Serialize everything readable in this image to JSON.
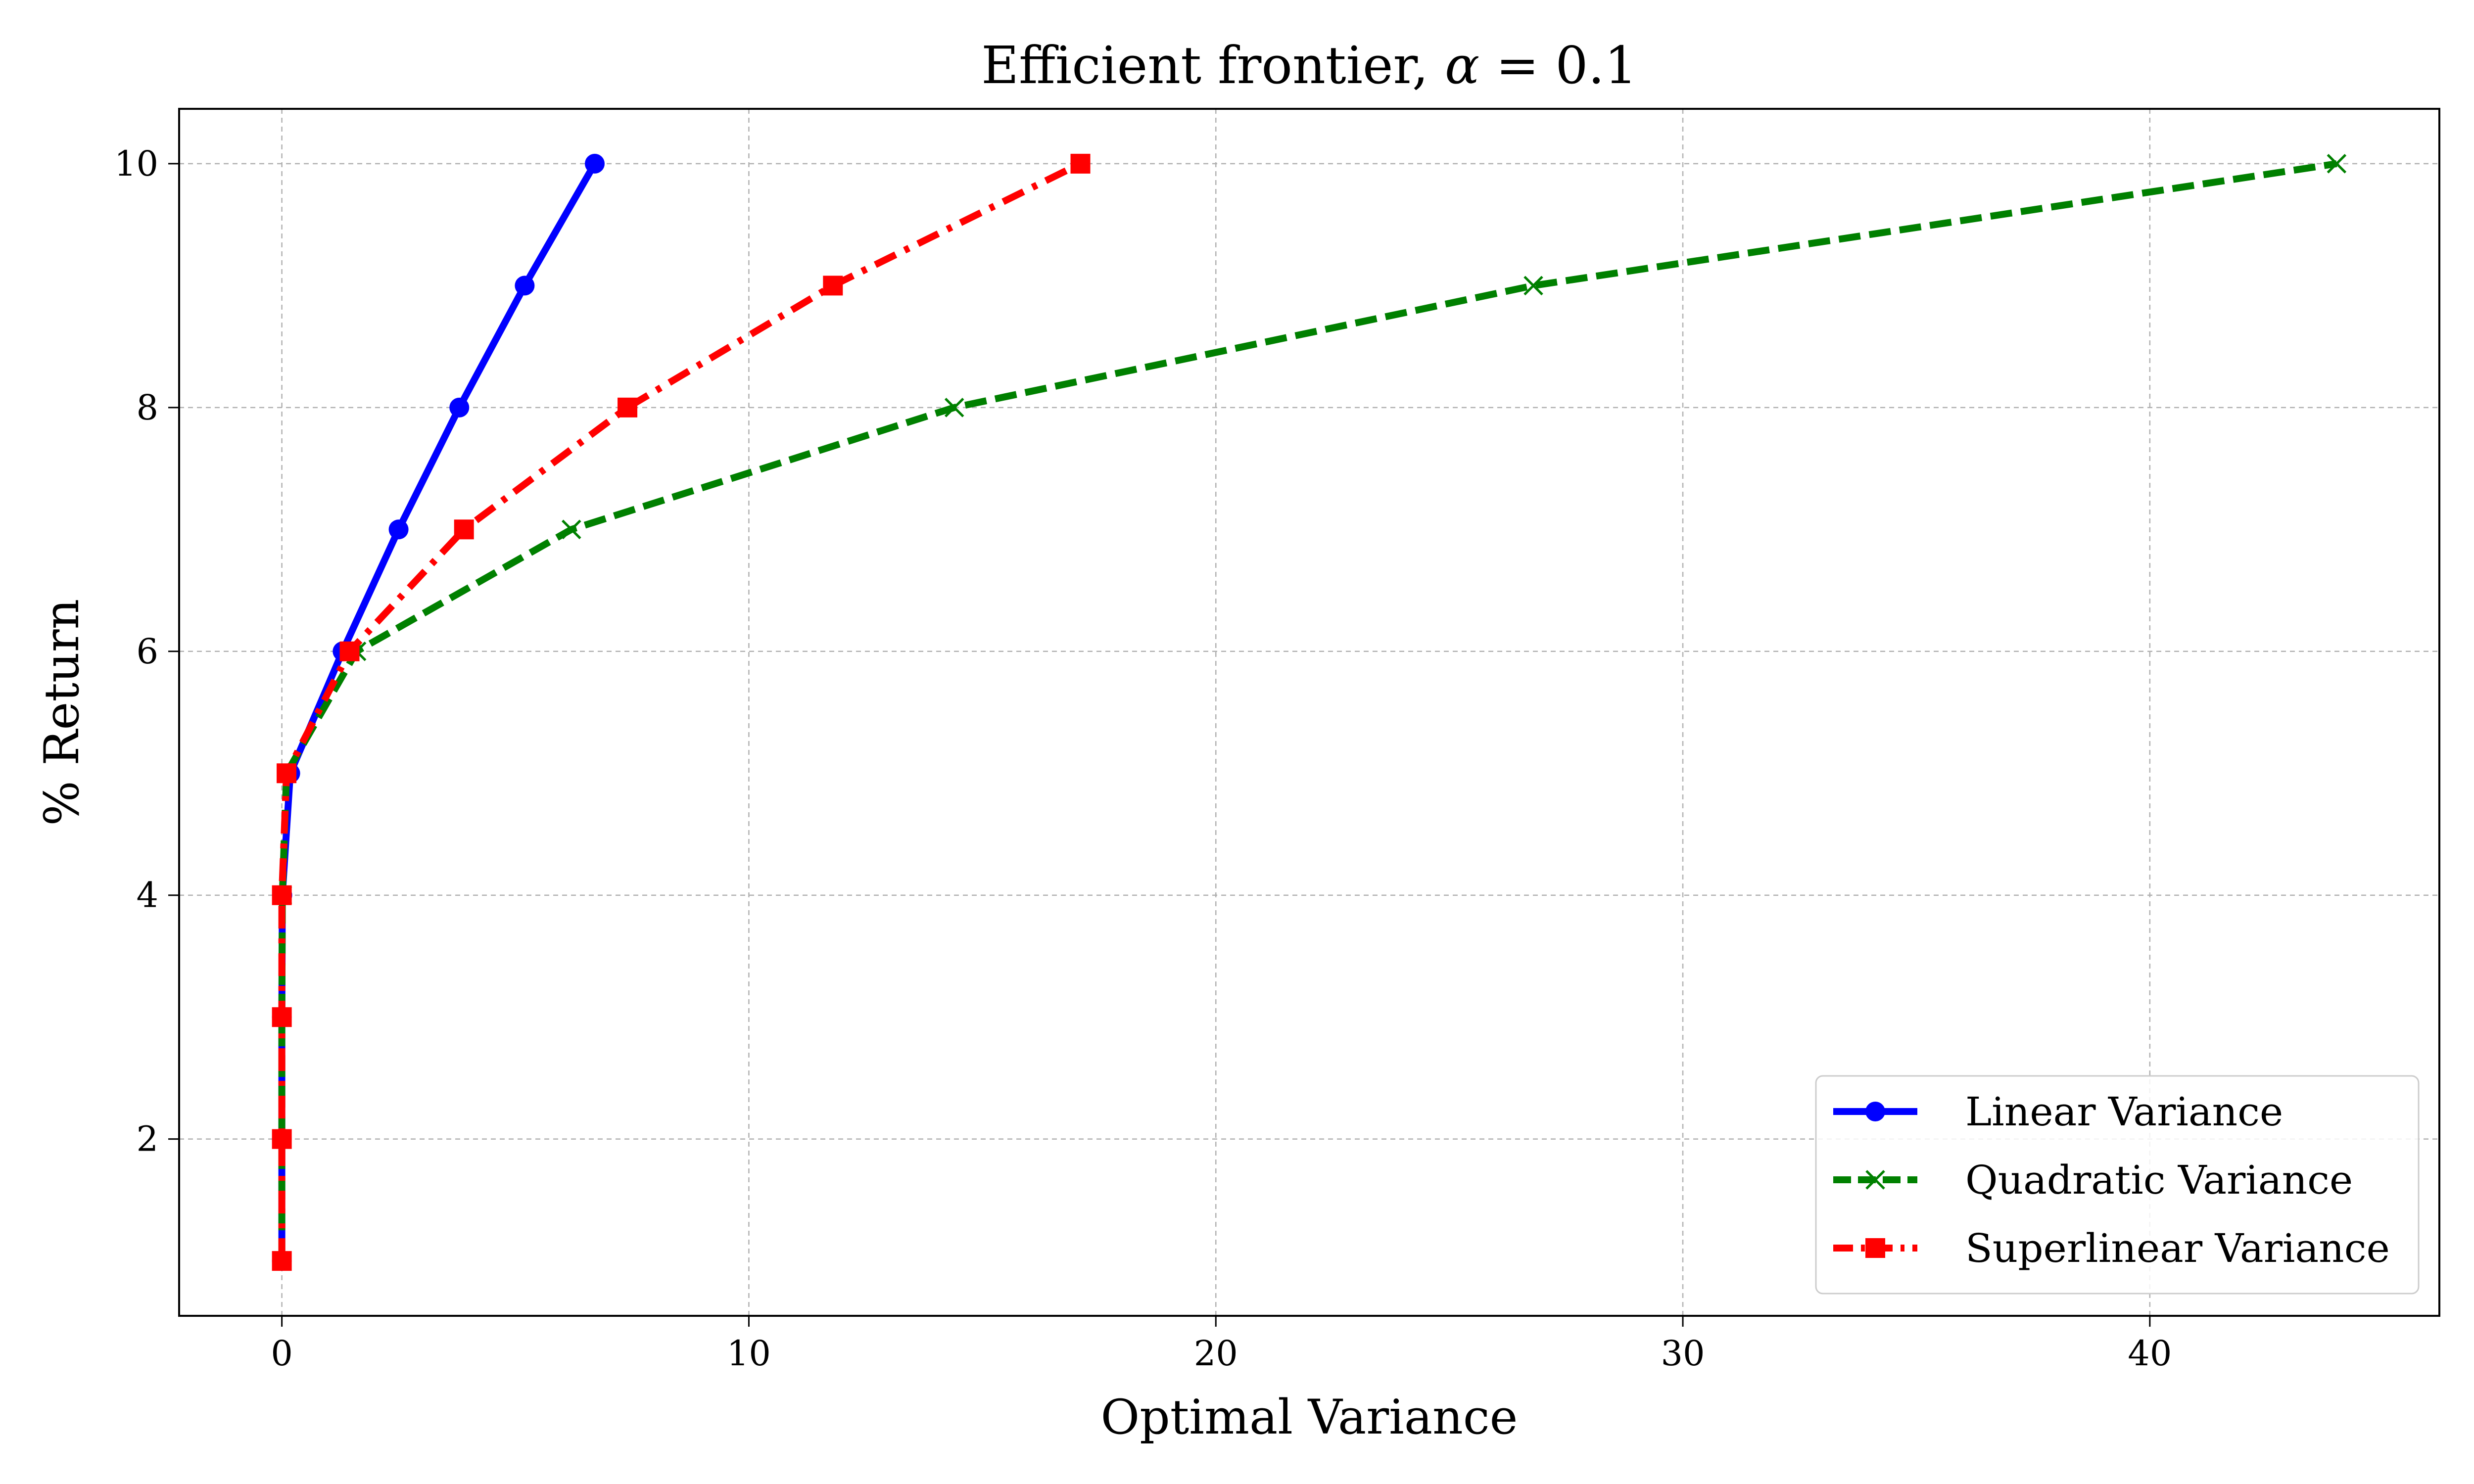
{
  "chart_data": {
    "type": "line",
    "title": "Efficient frontier, α = 0.1",
    "title_prefix": "Efficient frontier, ",
    "title_symbol": "α",
    "title_suffix": " = 0.1",
    "xlabel": "Optimal Variance",
    "ylabel": "% Return",
    "xlim": [
      -2.2,
      46.2
    ],
    "ylim": [
      0.55,
      10.45
    ],
    "x_ticks": [
      0,
      10,
      20,
      30,
      40
    ],
    "y_ticks": [
      2,
      4,
      6,
      8,
      10
    ],
    "x_tick_labels": [
      "0",
      "10",
      "20",
      "30",
      "40"
    ],
    "y_tick_labels": [
      "2",
      "4",
      "6",
      "8",
      "10"
    ],
    "grid": true,
    "legend_position": "bottom-right",
    "series": [
      {
        "name": "Linear Variance",
        "color": "#0000ff",
        "line_style": "solid",
        "marker": "circle",
        "x": [
          0.0,
          0.0,
          0.0,
          0.01,
          0.18,
          1.3,
          2.5,
          3.8,
          5.2,
          6.7
        ],
        "y": [
          1,
          2,
          3,
          4,
          5,
          6,
          7,
          8,
          9,
          10
        ]
      },
      {
        "name": "Quadratic Variance",
        "color": "#008000",
        "line_style": "dashed",
        "marker": "x",
        "x": [
          0.0,
          0.0,
          0.0,
          0.01,
          0.1,
          1.6,
          6.2,
          14.4,
          26.8,
          44.0
        ],
        "y": [
          1,
          2,
          3,
          4,
          5,
          6,
          7,
          8,
          9,
          10
        ]
      },
      {
        "name": "Superlinear Variance",
        "color": "#ff0000",
        "line_style": "dashdot",
        "marker": "square",
        "x": [
          0.0,
          0.0,
          0.0,
          0.0,
          0.1,
          1.45,
          3.9,
          7.4,
          11.8,
          17.1
        ],
        "y": [
          1,
          2,
          3,
          4,
          5,
          6,
          7,
          8,
          9,
          10
        ]
      }
    ]
  }
}
